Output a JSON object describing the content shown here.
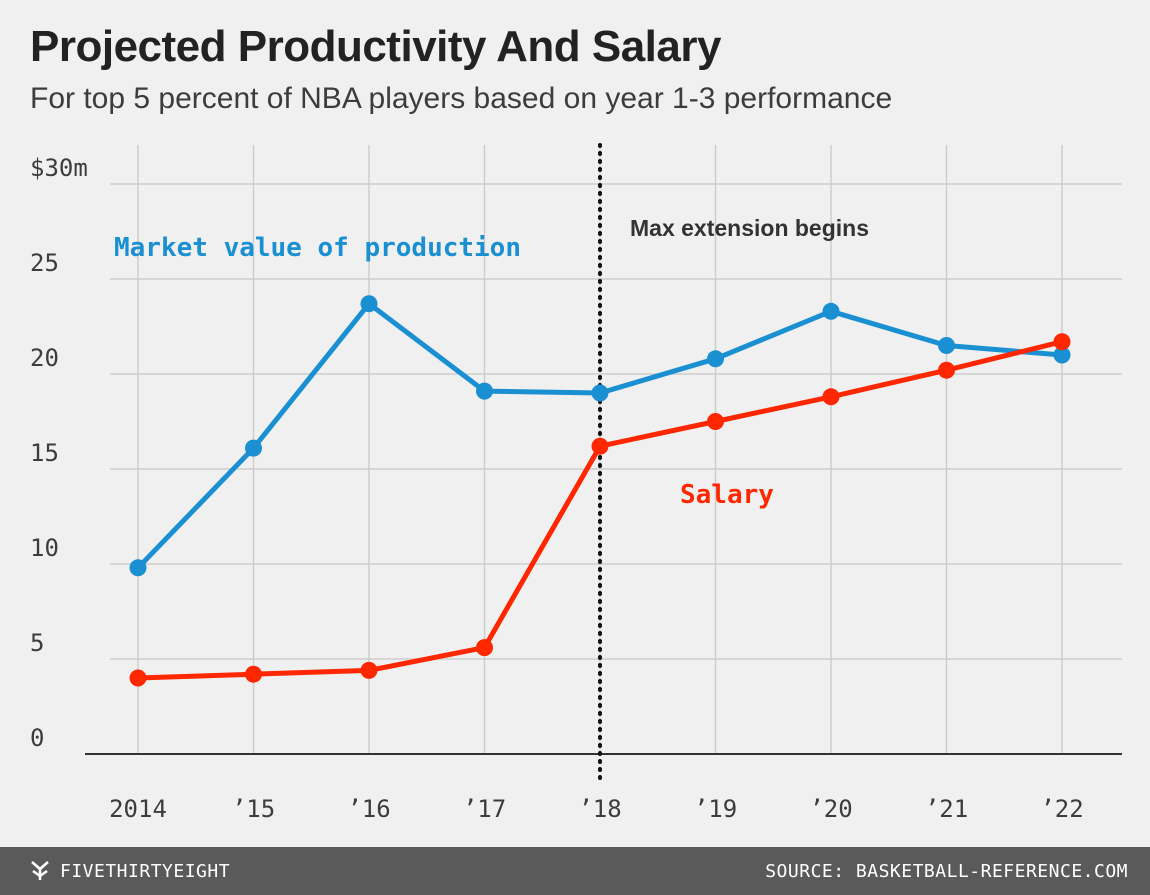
{
  "header": {
    "title": "Projected Productivity And Salary",
    "subtitle": "For top 5 percent of NBA players based on year 1-3 performance"
  },
  "footer": {
    "brand": "FIVETHIRTYEIGHT",
    "source": "SOURCE: BASKETBALL-REFERENCE.COM"
  },
  "colors": {
    "market_value": "#1a8fd1",
    "salary": "#ff2700",
    "grid": "#cdcdcd",
    "baseline": "#333333",
    "background": "#f0f0f0",
    "footer": "#5a5a5a"
  },
  "chart_data": {
    "type": "line",
    "title": "Projected Productivity And Salary",
    "subtitle": "For top 5 percent of NBA players based on year 1-3 performance",
    "x": [
      2014,
      2015,
      2016,
      2017,
      2018,
      2019,
      2020,
      2021,
      2022
    ],
    "x_tick_labels": [
      "2014",
      "’15",
      "’16",
      "’17",
      "’18",
      "’19",
      "’20",
      "’21",
      "’22"
    ],
    "y_ticks": [
      0,
      5,
      10,
      15,
      20,
      25,
      30
    ],
    "y_tick_labels": [
      "0",
      "5",
      "10",
      "15",
      "20",
      "25",
      "$30m"
    ],
    "ylim": [
      0,
      30
    ],
    "grid": true,
    "series": [
      {
        "name": "Market value of production",
        "color": "#1a8fd1",
        "values": [
          9.8,
          16.1,
          23.7,
          19.1,
          19.0,
          20.8,
          23.3,
          21.5,
          21.0
        ]
      },
      {
        "name": "Salary",
        "color": "#ff2700",
        "values": [
          4.0,
          4.2,
          4.4,
          5.6,
          16.2,
          17.5,
          18.8,
          20.2,
          21.7
        ]
      }
    ],
    "annotations": [
      {
        "text": "Max extension begins",
        "x": 2018
      }
    ]
  }
}
